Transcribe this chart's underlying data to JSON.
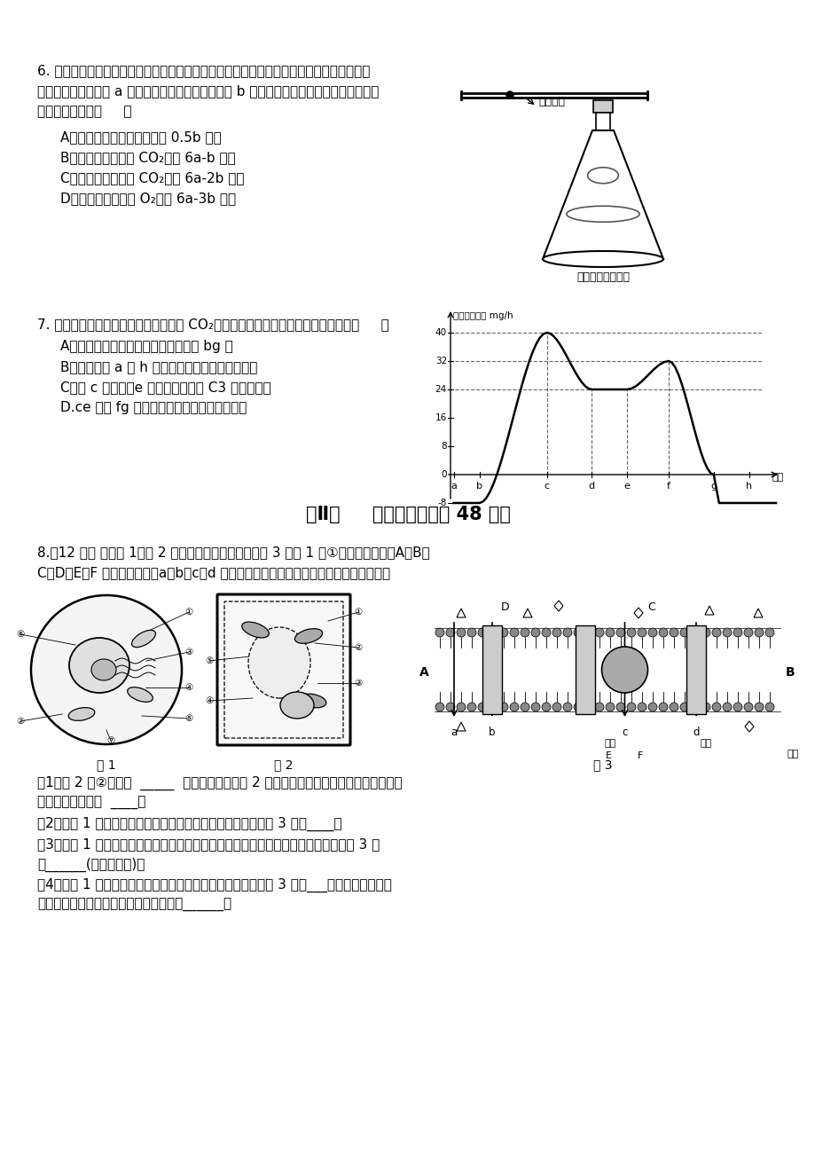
{
  "page_bg": "#ffffff",
  "text_color": "#000000",
  "fig_width": 9.2,
  "fig_height": 13.02,
  "font_size_body": 11,
  "font_size_title": 15,
  "q6_text_lines": [
    "6. 把盛有酵母菌和葡萄糖混合液的装置（如右图）置于适宜温度下，一段时间后，经检测，",
    "装置中葡萄糖减少了 a 摩尔，气体的体积总量增加了 b 摩尔。以下关于酵母菌细胞呼吸的分",
    "析，不正确的是（     ）"
  ],
  "q6_options": [
    "A．无氧呼吸消耗的葡萄糖为 0.5b 摩尔",
    "B．有氧呼吸产生的 CO₂量为 6a-b 摩尔",
    "C．细胞呼吸产生的 CO₂量为 6a-2b 摩尔",
    "D．细胞呼吸消耗的 O₂量为 6a-3b 摩尔"
  ],
  "flask_label": "有色液滴",
  "flask_bottom_label": "酵母菌＋葡萄糖液",
  "q7_text": "7. 右图为某植物在夏季晴天的一昼夜内 CO₂吸收量的变化情况。下列叙述正确的是（     ）",
  "q7_options": [
    "A．该植物进行光合作用的时间区段是 bg 段",
    "B．该植物在 a 和 h 时刻呼吸作用与光合作用相等",
    "C．与 c 点相比，e 点植物细胞内的 C3 含量将减少",
    "D.ce 段与 fg 段光合速率下降的原因完全相同"
  ],
  "graph_ylabel": "吸收二氧化碳 mg/h",
  "section_title": "第Ⅱ卷     （非选择题，共 48 分）",
  "q8_text_lines": [
    "8.（12 分） 下列图 1、图 2 是细胞的亚显微结构图。图 3 是图 1 中①的结构示意图，A、B、",
    "C、D、E、F 表示某些物质，a、b、c、d 表示物质跨膜运输方式。请据图回答下列问题。"
  ],
  "q8_sub": [
    "（1）图 2 中②与植物  _____  的形成有关。若图 2 是紫色洋葱鳞片叶表皮细胞的一部分，",
    "则色素主要存在于  ____。",
    "（2）若图 1 代表小肠上皮细胞，其吸收氨基酸的运输方式为图 3 中的____。",
    "（3）若图 1 代表人体内能吞噬病原体的白细胞，则该细胞能识别病原体主要依赖于图 3 中",
    "的______(用字母表示)。",
    "（4）若图 1 代表胃黏膜上皮细胞，人在饮酒时，酒精是通过图 3 中的___方式进入该细胞。",
    "下列曲线与酒精跨膜运输方式相符合的是______。"
  ],
  "fig1_label": "图 1",
  "fig2_label": "图 2",
  "fig3_label": "图 3"
}
